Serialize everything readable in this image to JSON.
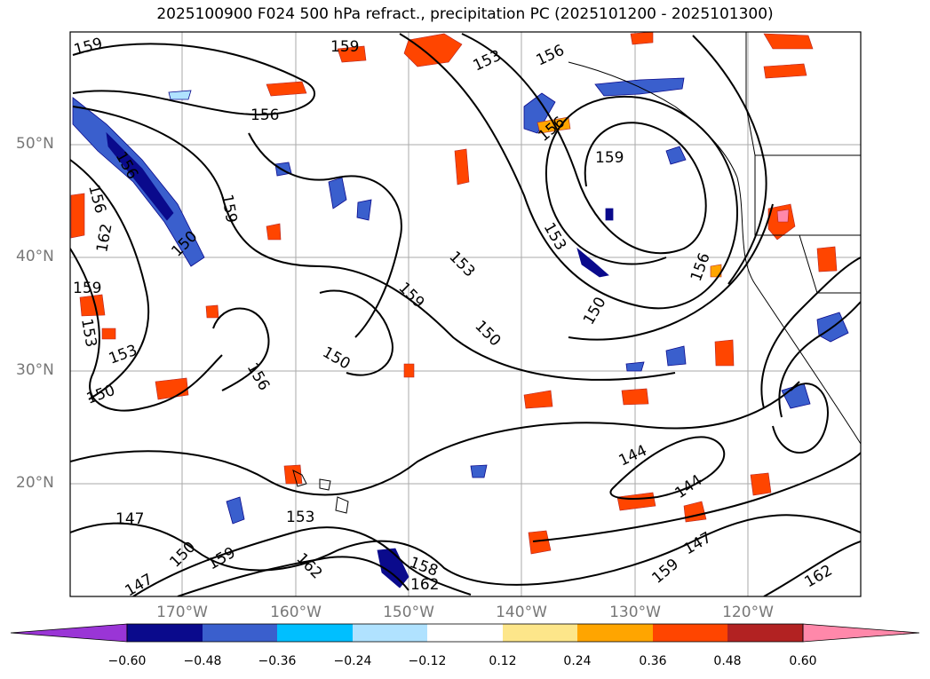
{
  "title": "2025100900 F024 500 hPa refract., precipitation PC (2025101200 - 2025101300)",
  "lat_labels": [
    "50°N",
    "40°N",
    "30°N",
    "20°N"
  ],
  "lon_labels": [
    "170°W",
    "160°W",
    "150°W",
    "140°W",
    "130°W",
    "120°W"
  ],
  "colorbar": {
    "ticks": [
      "−0.60",
      "−0.48",
      "−0.36",
      "−0.24",
      "−0.12",
      "0.12",
      "0.24",
      "0.36",
      "0.48",
      "0.60"
    ],
    "colors": [
      "#9a35d6",
      "#0a0a8c",
      "#3a5fcd",
      "#00bfff",
      "#b0e2ff",
      "#ffffff",
      "#fde68a",
      "#ffa500",
      "#ff4500",
      "#b22222",
      "#ff88aa"
    ]
  },
  "contour_labels": [
    "159",
    "159",
    "156",
    "153",
    "156",
    "159",
    "156",
    "156",
    "153",
    "159",
    "150",
    "153",
    "159",
    "156",
    "162",
    "159",
    "153",
    "153",
    "150",
    "150",
    "150",
    "156",
    "150",
    "144",
    "144",
    "147",
    "147",
    "150",
    "159",
    "162",
    "158",
    "162",
    "153",
    "162",
    "159",
    "147",
    "156"
  ]
}
